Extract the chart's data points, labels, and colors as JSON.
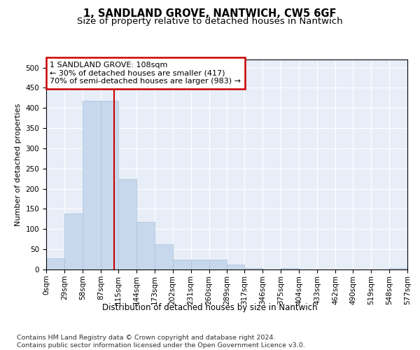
{
  "title": "1, SANDLAND GROVE, NANTWICH, CW5 6GF",
  "subtitle": "Size of property relative to detached houses in Nantwich",
  "xlabel": "Distribution of detached houses by size in Nantwich",
  "ylabel": "Number of detached properties",
  "bar_color": "#c8d8ec",
  "bar_edge_color": "#a8c0d8",
  "background_color": "#ffffff",
  "plot_bg_color": "#e8eef8",
  "grid_color": "#ffffff",
  "annotation_box_color": "#cc0000",
  "vline_color": "#cc0000",
  "vline_x": 108,
  "annotation_text": "1 SANDLAND GROVE: 108sqm\n← 30% of detached houses are smaller (417)\n70% of semi-detached houses are larger (983) →",
  "footer_text": "Contains HM Land Registry data © Crown copyright and database right 2024.\nContains public sector information licensed under the Open Government Licence v3.0.",
  "bin_edges": [
    0,
    29,
    58,
    87,
    115,
    144,
    173,
    202,
    231,
    260,
    289,
    317,
    346,
    375,
    404,
    433,
    462,
    490,
    519,
    548,
    577
  ],
  "bar_heights": [
    27,
    138,
    418,
    418,
    224,
    118,
    62,
    25,
    25,
    25,
    12,
    3,
    0,
    3,
    0,
    0,
    0,
    0,
    0,
    3
  ],
  "ylim": [
    0,
    520
  ],
  "yticks": [
    0,
    50,
    100,
    150,
    200,
    250,
    300,
    350,
    400,
    450,
    500
  ],
  "title_fontsize": 10.5,
  "subtitle_fontsize": 9.5,
  "xlabel_fontsize": 8.5,
  "ylabel_fontsize": 8,
  "tick_fontsize": 7.5,
  "annotation_fontsize": 8,
  "footer_fontsize": 6.8
}
